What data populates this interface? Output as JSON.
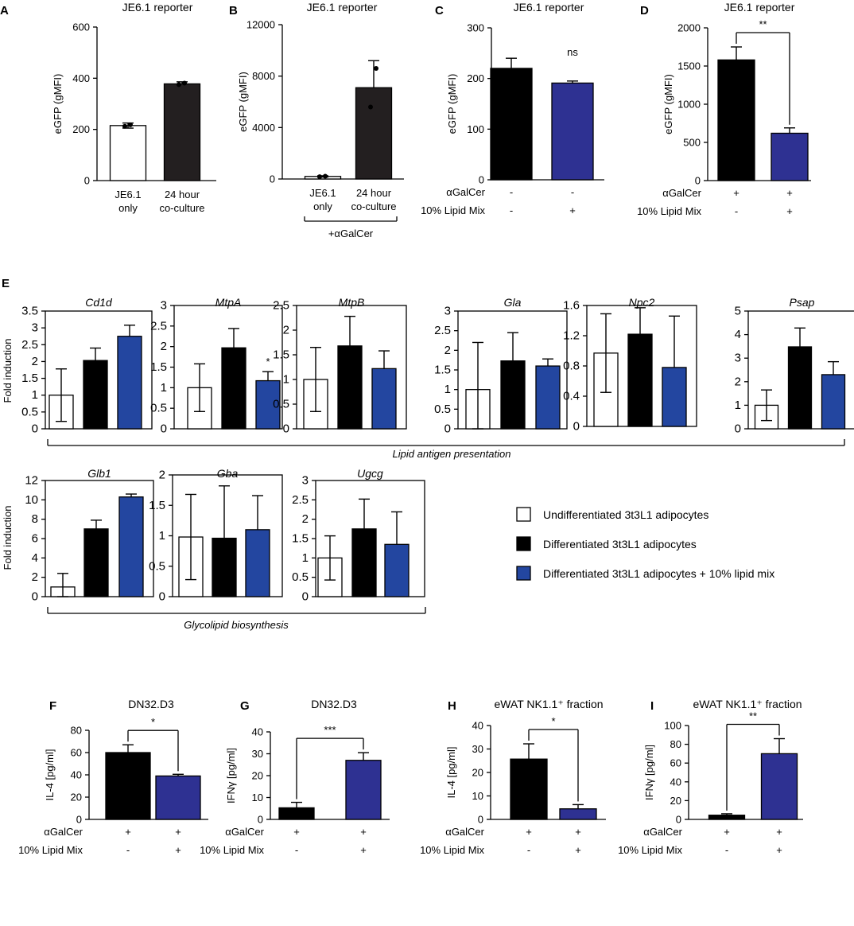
{
  "colors": {
    "black": "#000000",
    "dark_gray": "#231f20",
    "blue_top": "#2e3192",
    "blue_e": "#2346a0",
    "white": "#ffffff"
  },
  "legend": {
    "items": [
      {
        "label": "Undifferentiated 3t3L1 adipocytes",
        "color": "#ffffff"
      },
      {
        "label": "Differentiated 3t3L1 adipocytes",
        "color": "#000000"
      },
      {
        "label": "Differentiated 3t3L1 adipocytes + 10% lipid mix",
        "color": "#2346a0"
      }
    ]
  },
  "group_labels": {
    "lipid_antigen": "Lipid antigen presentation",
    "glycolipid": "Glycolipid biosynthesis",
    "fold_induction": "Fold induction",
    "galcer_bracket": "+αGalCer",
    "panel_e_letter": "E"
  },
  "chart_data": [
    {
      "id": "A",
      "type": "bar",
      "title": "JE6.1 reporter",
      "ylabel": "eGFP (gMFI)",
      "ylim": [
        0,
        600
      ],
      "yticks": [
        0,
        200,
        400,
        600
      ],
      "categories": [
        [
          "JE6.1",
          "only"
        ],
        [
          "24 hour",
          "co-culture"
        ]
      ],
      "values": [
        215,
        378
      ],
      "errors": [
        10,
        8
      ],
      "colors": [
        "#ffffff",
        "#231f20"
      ],
      "points": [
        [
          212,
          218
        ],
        [
          375,
          381
        ]
      ]
    },
    {
      "id": "B",
      "type": "bar",
      "title": "JE6.1 reporter",
      "ylabel": "eGFP (gMFI)",
      "ylim": [
        0,
        12000
      ],
      "yticks": [
        0,
        4000,
        8000,
        12000
      ],
      "yticklabels": [
        "0",
        "4000",
        "8000",
        "12000"
      ],
      "categories": [
        [
          "JE6.1",
          "only"
        ],
        [
          "24 hour",
          "co-culture"
        ]
      ],
      "values": [
        200,
        7100
      ],
      "errors": [
        50,
        2100
      ],
      "colors": [
        "#ffffff",
        "#231f20"
      ],
      "points": [
        [
          180,
          220
        ],
        [
          5600,
          8600
        ]
      ]
    },
    {
      "id": "C",
      "type": "bar",
      "title": "JE6.1 reporter",
      "ylabel": "eGFP (gMFI)",
      "ylim": [
        0,
        300
      ],
      "yticks": [
        0,
        100,
        200,
        300
      ],
      "values": [
        220,
        191
      ],
      "errors": [
        20,
        4
      ],
      "colors": [
        "#000000",
        "#2e3192"
      ],
      "row_labels": [
        "αGalCer",
        "10% Lipid Mix"
      ],
      "row_values": [
        [
          "-",
          "-"
        ],
        [
          "-",
          "+"
        ]
      ],
      "sig": {
        "type": "text",
        "label": "ns"
      }
    },
    {
      "id": "D",
      "type": "bar",
      "title": "JE6.1 reporter",
      "ylabel": "eGFP (gMFI)",
      "ylim": [
        0,
        2000
      ],
      "yticks": [
        0,
        500,
        1000,
        1500,
        2000
      ],
      "values": [
        1580,
        620
      ],
      "errors": [
        170,
        70
      ],
      "colors": [
        "#000000",
        "#2e3192"
      ],
      "row_labels": [
        "αGalCer",
        "10% Lipid Mix"
      ],
      "row_values": [
        [
          "+",
          "+"
        ],
        [
          "-",
          "+"
        ]
      ],
      "sig": {
        "type": "bracket",
        "label": "**"
      }
    },
    {
      "id": "E1",
      "type": "bar",
      "title": "Cd1d",
      "ylim": [
        0,
        3.5
      ],
      "yticks": [
        0,
        0.5,
        1,
        1.5,
        2,
        2.5,
        3,
        3.5
      ],
      "yticklabels": [
        "0",
        "0.5",
        "1",
        "1.5",
        "2",
        "2.5",
        "3",
        "3.5"
      ],
      "values": [
        1.0,
        2.03,
        2.75
      ],
      "errors": [
        0.78,
        0.37,
        0.33
      ],
      "colors": [
        "#ffffff",
        "#000000",
        "#2346a0"
      ]
    },
    {
      "id": "E2",
      "type": "bar",
      "title": "MtpA",
      "ylim": [
        0,
        3
      ],
      "yticks": [
        0,
        0.5,
        1,
        1.5,
        2,
        2.5,
        3
      ],
      "yticklabels": [
        "0",
        "0.5",
        "1",
        "1.5",
        "2",
        "2.5",
        "3"
      ],
      "values": [
        1.0,
        1.97,
        1.17
      ],
      "errors": [
        0.58,
        0.47,
        0.22
      ],
      "colors": [
        "#ffffff",
        "#000000",
        "#2346a0"
      ],
      "star": {
        "bar": 2,
        "label": "*"
      }
    },
    {
      "id": "E3",
      "type": "bar",
      "title": "MtpB",
      "ylim": [
        0,
        2.5
      ],
      "yticks": [
        0,
        0.5,
        1,
        1.5,
        2,
        2.5
      ],
      "yticklabels": [
        "0",
        "0.5",
        "1",
        "1.5",
        "2",
        "2.5"
      ],
      "values": [
        1.0,
        1.68,
        1.22
      ],
      "errors": [
        0.65,
        0.6,
        0.36
      ],
      "colors": [
        "#ffffff",
        "#000000",
        "#2346a0"
      ]
    },
    {
      "id": "E4",
      "type": "bar",
      "title": "Gla",
      "ylim": [
        0,
        3
      ],
      "yticks": [
        0,
        0.5,
        1,
        1.5,
        2,
        2.5,
        3
      ],
      "yticklabels": [
        "0",
        "0.5",
        "1",
        "1.5",
        "2",
        "2.5",
        "3"
      ],
      "values": [
        1.0,
        1.73,
        1.6
      ],
      "errors": [
        1.2,
        0.72,
        0.18
      ],
      "colors": [
        "#ffffff",
        "#000000",
        "#2346a0"
      ]
    },
    {
      "id": "E5",
      "type": "bar",
      "title": "Npc2",
      "ylim": [
        0,
        1.6
      ],
      "yticks": [
        0,
        0.4,
        0.8,
        1.2,
        1.6
      ],
      "yticklabels": [
        "0",
        "0.4",
        "0.8",
        "1.2",
        "1.6"
      ],
      "values": [
        0.97,
        1.22,
        0.78
      ],
      "errors": [
        0.52,
        0.35,
        0.68
      ],
      "colors": [
        "#ffffff",
        "#000000",
        "#2346a0"
      ]
    },
    {
      "id": "E6",
      "type": "bar",
      "title": "Psap",
      "ylim": [
        0,
        5
      ],
      "yticks": [
        0,
        1,
        2,
        3,
        4,
        5
      ],
      "yticklabels": [
        "0",
        "1",
        "2",
        "3",
        "4",
        "5"
      ],
      "values": [
        1.0,
        3.48,
        2.3
      ],
      "errors": [
        0.65,
        0.8,
        0.55
      ],
      "colors": [
        "#ffffff",
        "#000000",
        "#2346a0"
      ]
    },
    {
      "id": "E7",
      "type": "bar",
      "title": "Glb1",
      "ylim": [
        0,
        12
      ],
      "yticks": [
        0,
        2,
        4,
        6,
        8,
        10,
        12
      ],
      "yticklabels": [
        "0",
        "2",
        "4",
        "6",
        "8",
        "10",
        "12"
      ],
      "values": [
        1.0,
        7.0,
        10.3
      ],
      "errors": [
        1.4,
        0.9,
        0.3
      ],
      "colors": [
        "#ffffff",
        "#000000",
        "#2346a0"
      ]
    },
    {
      "id": "E8",
      "type": "bar",
      "title": "Gba",
      "ylim": [
        0,
        2
      ],
      "yticks": [
        0,
        0.5,
        1,
        1.5,
        2
      ],
      "yticklabels": [
        "0",
        "0.5",
        "1",
        "1.5",
        "2"
      ],
      "values": [
        0.98,
        0.96,
        1.1
      ],
      "errors": [
        0.7,
        0.86,
        0.56
      ],
      "colors": [
        "#ffffff",
        "#000000",
        "#2346a0"
      ]
    },
    {
      "id": "E9",
      "type": "bar",
      "title": "Ugcg",
      "ylim": [
        0,
        3
      ],
      "yticks": [
        0,
        0.5,
        1,
        1.5,
        2,
        2.5,
        3
      ],
      "yticklabels": [
        "0",
        "0.5",
        "1",
        "1.5",
        "2",
        "2.5",
        "3"
      ],
      "values": [
        1.0,
        1.75,
        1.35
      ],
      "errors": [
        0.57,
        0.77,
        0.84
      ],
      "colors": [
        "#ffffff",
        "#000000",
        "#2346a0"
      ]
    },
    {
      "id": "F",
      "type": "bar",
      "title": "DN32.D3",
      "ylabel": "IL-4  [pg/ml]",
      "ylim": [
        0,
        80
      ],
      "yticks": [
        0,
        20,
        40,
        60,
        80
      ],
      "values": [
        60,
        39
      ],
      "errors": [
        7,
        1.5
      ],
      "colors": [
        "#000000",
        "#2e3192"
      ],
      "row_labels": [
        "αGalCer",
        "10% Lipid Mix"
      ],
      "row_values": [
        [
          "+",
          "+"
        ],
        [
          "-",
          "+"
        ]
      ],
      "sig": {
        "type": "bracket",
        "label": "*"
      }
    },
    {
      "id": "G",
      "type": "bar",
      "title": "DN32.D3",
      "ylabel": "IFNγ [pg/ml]",
      "ylim": [
        0,
        40
      ],
      "yticks": [
        0,
        10,
        20,
        30,
        40
      ],
      "values": [
        5.3,
        27
      ],
      "errors": [
        2.5,
        3.5
      ],
      "colors": [
        "#000000",
        "#2e3192"
      ],
      "row_labels": [
        "αGalCer",
        "10% Lipid Mix"
      ],
      "row_values": [
        [
          "+",
          "+"
        ],
        [
          "-",
          "+"
        ]
      ],
      "sig": {
        "type": "bracket",
        "label": "***"
      }
    },
    {
      "id": "H",
      "type": "bar",
      "title": "eWAT NK1.1⁺ fraction",
      "ylabel": "IL-4  [pg/ml]",
      "ylim": [
        0,
        40
      ],
      "yticks": [
        0,
        10,
        20,
        30,
        40
      ],
      "values": [
        25.7,
        4.5
      ],
      "errors": [
        6.5,
        1.8
      ],
      "colors": [
        "#000000",
        "#2e3192"
      ],
      "row_labels": [
        "αGalCer",
        "10% Lipid Mix"
      ],
      "row_values": [
        [
          "+",
          "+"
        ],
        [
          "-",
          "+"
        ]
      ],
      "sig": {
        "type": "bracket",
        "label": "*"
      }
    },
    {
      "id": "I",
      "type": "bar",
      "title": "eWAT NK1.1⁺ fraction",
      "ylabel": "IFNγ [pg/ml]",
      "ylim": [
        0,
        100
      ],
      "yticks": [
        0,
        20,
        40,
        60,
        80,
        100
      ],
      "values": [
        4.5,
        70
      ],
      "errors": [
        1.5,
        16
      ],
      "colors": [
        "#000000",
        "#2e3192"
      ],
      "row_labels": [
        "αGalCer",
        "10% Lipid Mix"
      ],
      "row_values": [
        [
          "+",
          "+"
        ],
        [
          "-",
          "+"
        ]
      ],
      "sig": {
        "type": "bracket",
        "label": "**"
      }
    }
  ]
}
